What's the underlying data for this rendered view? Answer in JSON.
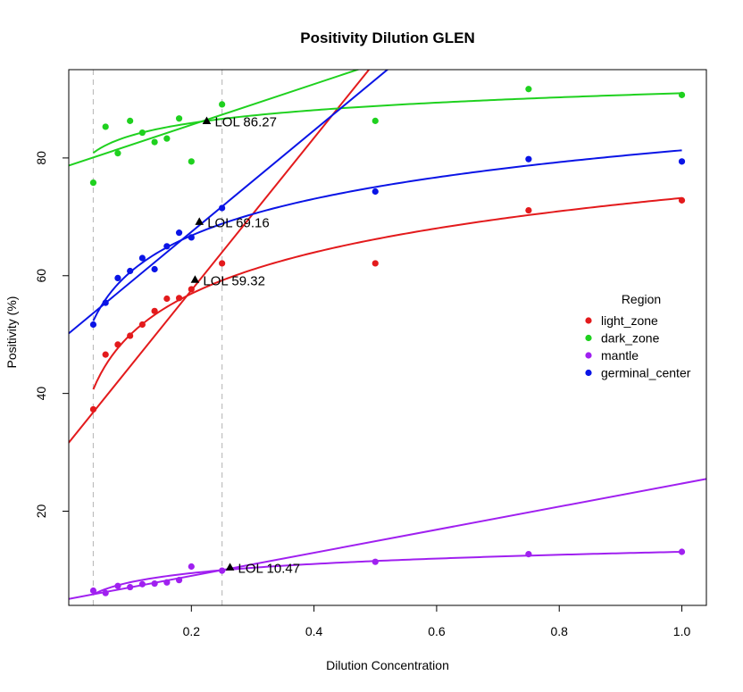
{
  "chart_data": {
    "type": "scatter",
    "title": "Positivity Dilution GLEN",
    "xlabel": "Dilution Concentration",
    "ylabel": "Positivity (%)",
    "xlim": [
      0.0,
      1.04
    ],
    "ylim": [
      4.0,
      95.0
    ],
    "xticks": [
      0.2,
      0.4,
      0.6,
      0.8,
      1.0
    ],
    "xtick_labels": [
      "0.2",
      "0.4",
      "0.6",
      "0.8",
      "1.0"
    ],
    "yticks": [
      20,
      40,
      60,
      80
    ],
    "ytick_labels": [
      "20",
      "40",
      "60",
      "80"
    ],
    "grid": false,
    "reference_lines_x": [
      0.04,
      0.25
    ],
    "legend": {
      "title": "Region",
      "placement": "right",
      "entries": [
        "light_zone",
        "dark_zone",
        "mantle",
        "germinal_center"
      ]
    },
    "series": [
      {
        "name": "light_zone",
        "color": "#e31a1c",
        "x": [
          0.04,
          0.06,
          0.08,
          0.1,
          0.12,
          0.14,
          0.16,
          0.18,
          0.2,
          0.25,
          0.5,
          0.75,
          1.0
        ],
        "y": [
          37.3,
          46.6,
          48.3,
          49.8,
          51.7,
          54.0,
          56.1,
          56.2,
          57.7,
          62.1,
          62.1,
          71.1,
          72.8
        ],
        "log_fit": {
          "a": 73.2,
          "b": 10.1
        },
        "linear_fit": {
          "intercept": 31.64,
          "slope": 129.4
        },
        "lol": {
          "x": 0.206,
          "y": 59.32,
          "label": "LOL  59.32"
        }
      },
      {
        "name": "dark_zone",
        "color": "#1fd11f",
        "x": [
          0.04,
          0.06,
          0.08,
          0.1,
          0.12,
          0.14,
          0.16,
          0.18,
          0.2,
          0.25,
          0.5,
          0.75,
          1.0
        ],
        "y": [
          75.8,
          85.3,
          80.8,
          86.3,
          84.3,
          82.7,
          83.3,
          86.7,
          79.4,
          89.1,
          86.3,
          91.7,
          90.7
        ],
        "log_fit": {
          "a": 91.0,
          "b": 3.15
        },
        "linear_fit": {
          "intercept": 78.7,
          "slope": 34.6
        },
        "lol": {
          "x": 0.225,
          "y": 86.27,
          "label": "LOL  86.27"
        }
      },
      {
        "name": "mantle",
        "color": "#a020f0",
        "x": [
          0.04,
          0.06,
          0.08,
          0.1,
          0.12,
          0.14,
          0.16,
          0.18,
          0.2,
          0.25,
          0.5,
          0.75,
          1.0
        ],
        "y": [
          6.5,
          6.1,
          7.3,
          7.1,
          7.6,
          7.7,
          7.9,
          8.3,
          10.6,
          9.9,
          11.4,
          12.7,
          13.1
        ],
        "log_fit": {
          "a": 13.1,
          "b": 2.25
        },
        "linear_fit": {
          "intercept": 5.1,
          "slope": 19.6
        },
        "lol": {
          "x": 0.263,
          "y": 10.47,
          "label": "LOL  10.47"
        }
      },
      {
        "name": "germinal_center",
        "color": "#0a14e6",
        "x": [
          0.04,
          0.06,
          0.08,
          0.1,
          0.12,
          0.14,
          0.16,
          0.18,
          0.2,
          0.25,
          0.5,
          0.75,
          1.0
        ],
        "y": [
          51.7,
          55.4,
          59.6,
          60.8,
          63.0,
          61.1,
          65.0,
          67.3,
          66.5,
          71.5,
          74.3,
          79.8,
          79.4
        ],
        "log_fit": {
          "a": 81.3,
          "b": 9.0
        },
        "linear_fit": {
          "intercept": 50.2,
          "slope": 86.2
        },
        "lol": {
          "x": 0.213,
          "y": 69.16,
          "label": "LOL  69.16"
        }
      }
    ]
  }
}
